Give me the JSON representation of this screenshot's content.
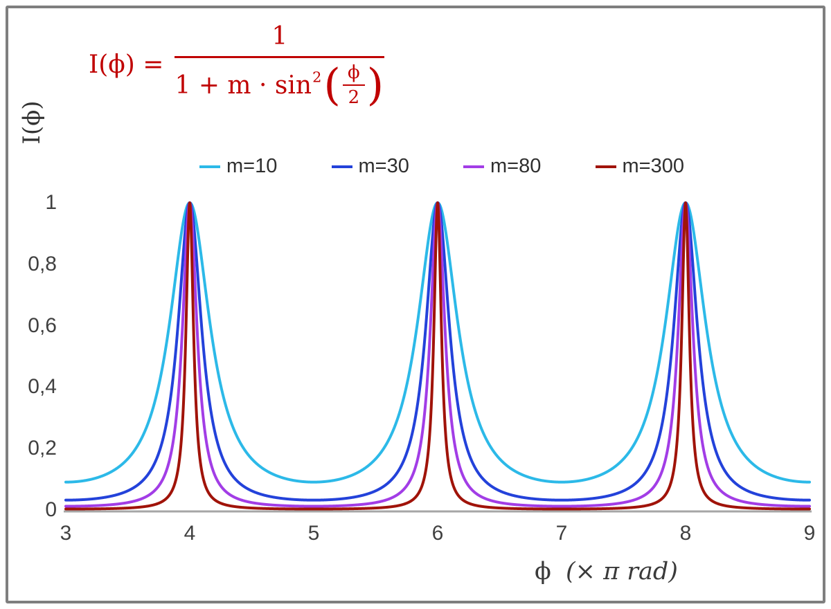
{
  "formula": {
    "lhs": "I(ϕ) =",
    "numerator": "1",
    "denom_prefix": "1 + m · sin",
    "denom_sup": "2",
    "inner_num": "ϕ",
    "inner_den": "2",
    "color": "#c00000"
  },
  "y_axis": {
    "title": "I(ϕ)",
    "ticks": [
      "1",
      "0,8",
      "0,6",
      "0,4",
      "0,2",
      "0"
    ],
    "tick_values": [
      1,
      0.8,
      0.6,
      0.4,
      0.2,
      0
    ]
  },
  "x_axis": {
    "title_phi": "ϕ",
    "title_rest": "(× π rad)",
    "ticks": [
      "3",
      "4",
      "5",
      "6",
      "7",
      "8",
      "9"
    ],
    "tick_values": [
      3,
      4,
      5,
      6,
      7,
      8,
      9
    ]
  },
  "colors": {
    "frame_border": "#7f7f7f",
    "axis_line": "#a6a6a6",
    "tick_text": "#404040"
  },
  "chart_data": {
    "type": "line",
    "title": "I(ϕ) = 1 / (1 + m·sin²(ϕ/2))",
    "xlabel": "ϕ (× π rad)",
    "ylabel": "I(ϕ)",
    "xlim": [
      3,
      9
    ],
    "ylim": [
      0,
      1
    ],
    "grid": false,
    "legend_position": "top",
    "function": "I(x) = 1 / (1 + m * sin(x*π/2)^2), with x = ϕ in units of π rad",
    "series": [
      {
        "name": "m=10",
        "m": 10,
        "color": "#2cb9e8",
        "min_I": 0.0909
      },
      {
        "name": "m=30",
        "m": 30,
        "color": "#2342da",
        "min_I": 0.0323
      },
      {
        "name": "m=80",
        "m": 80,
        "color": "#a23de6",
        "min_I": 0.0123
      },
      {
        "name": "m=300",
        "m": 300,
        "color": "#a01309",
        "min_I": 0.0033
      }
    ],
    "peaks_x": [
      4,
      6,
      8
    ],
    "peak_value": 1,
    "minima_x": [
      3,
      5,
      7,
      9
    ]
  }
}
